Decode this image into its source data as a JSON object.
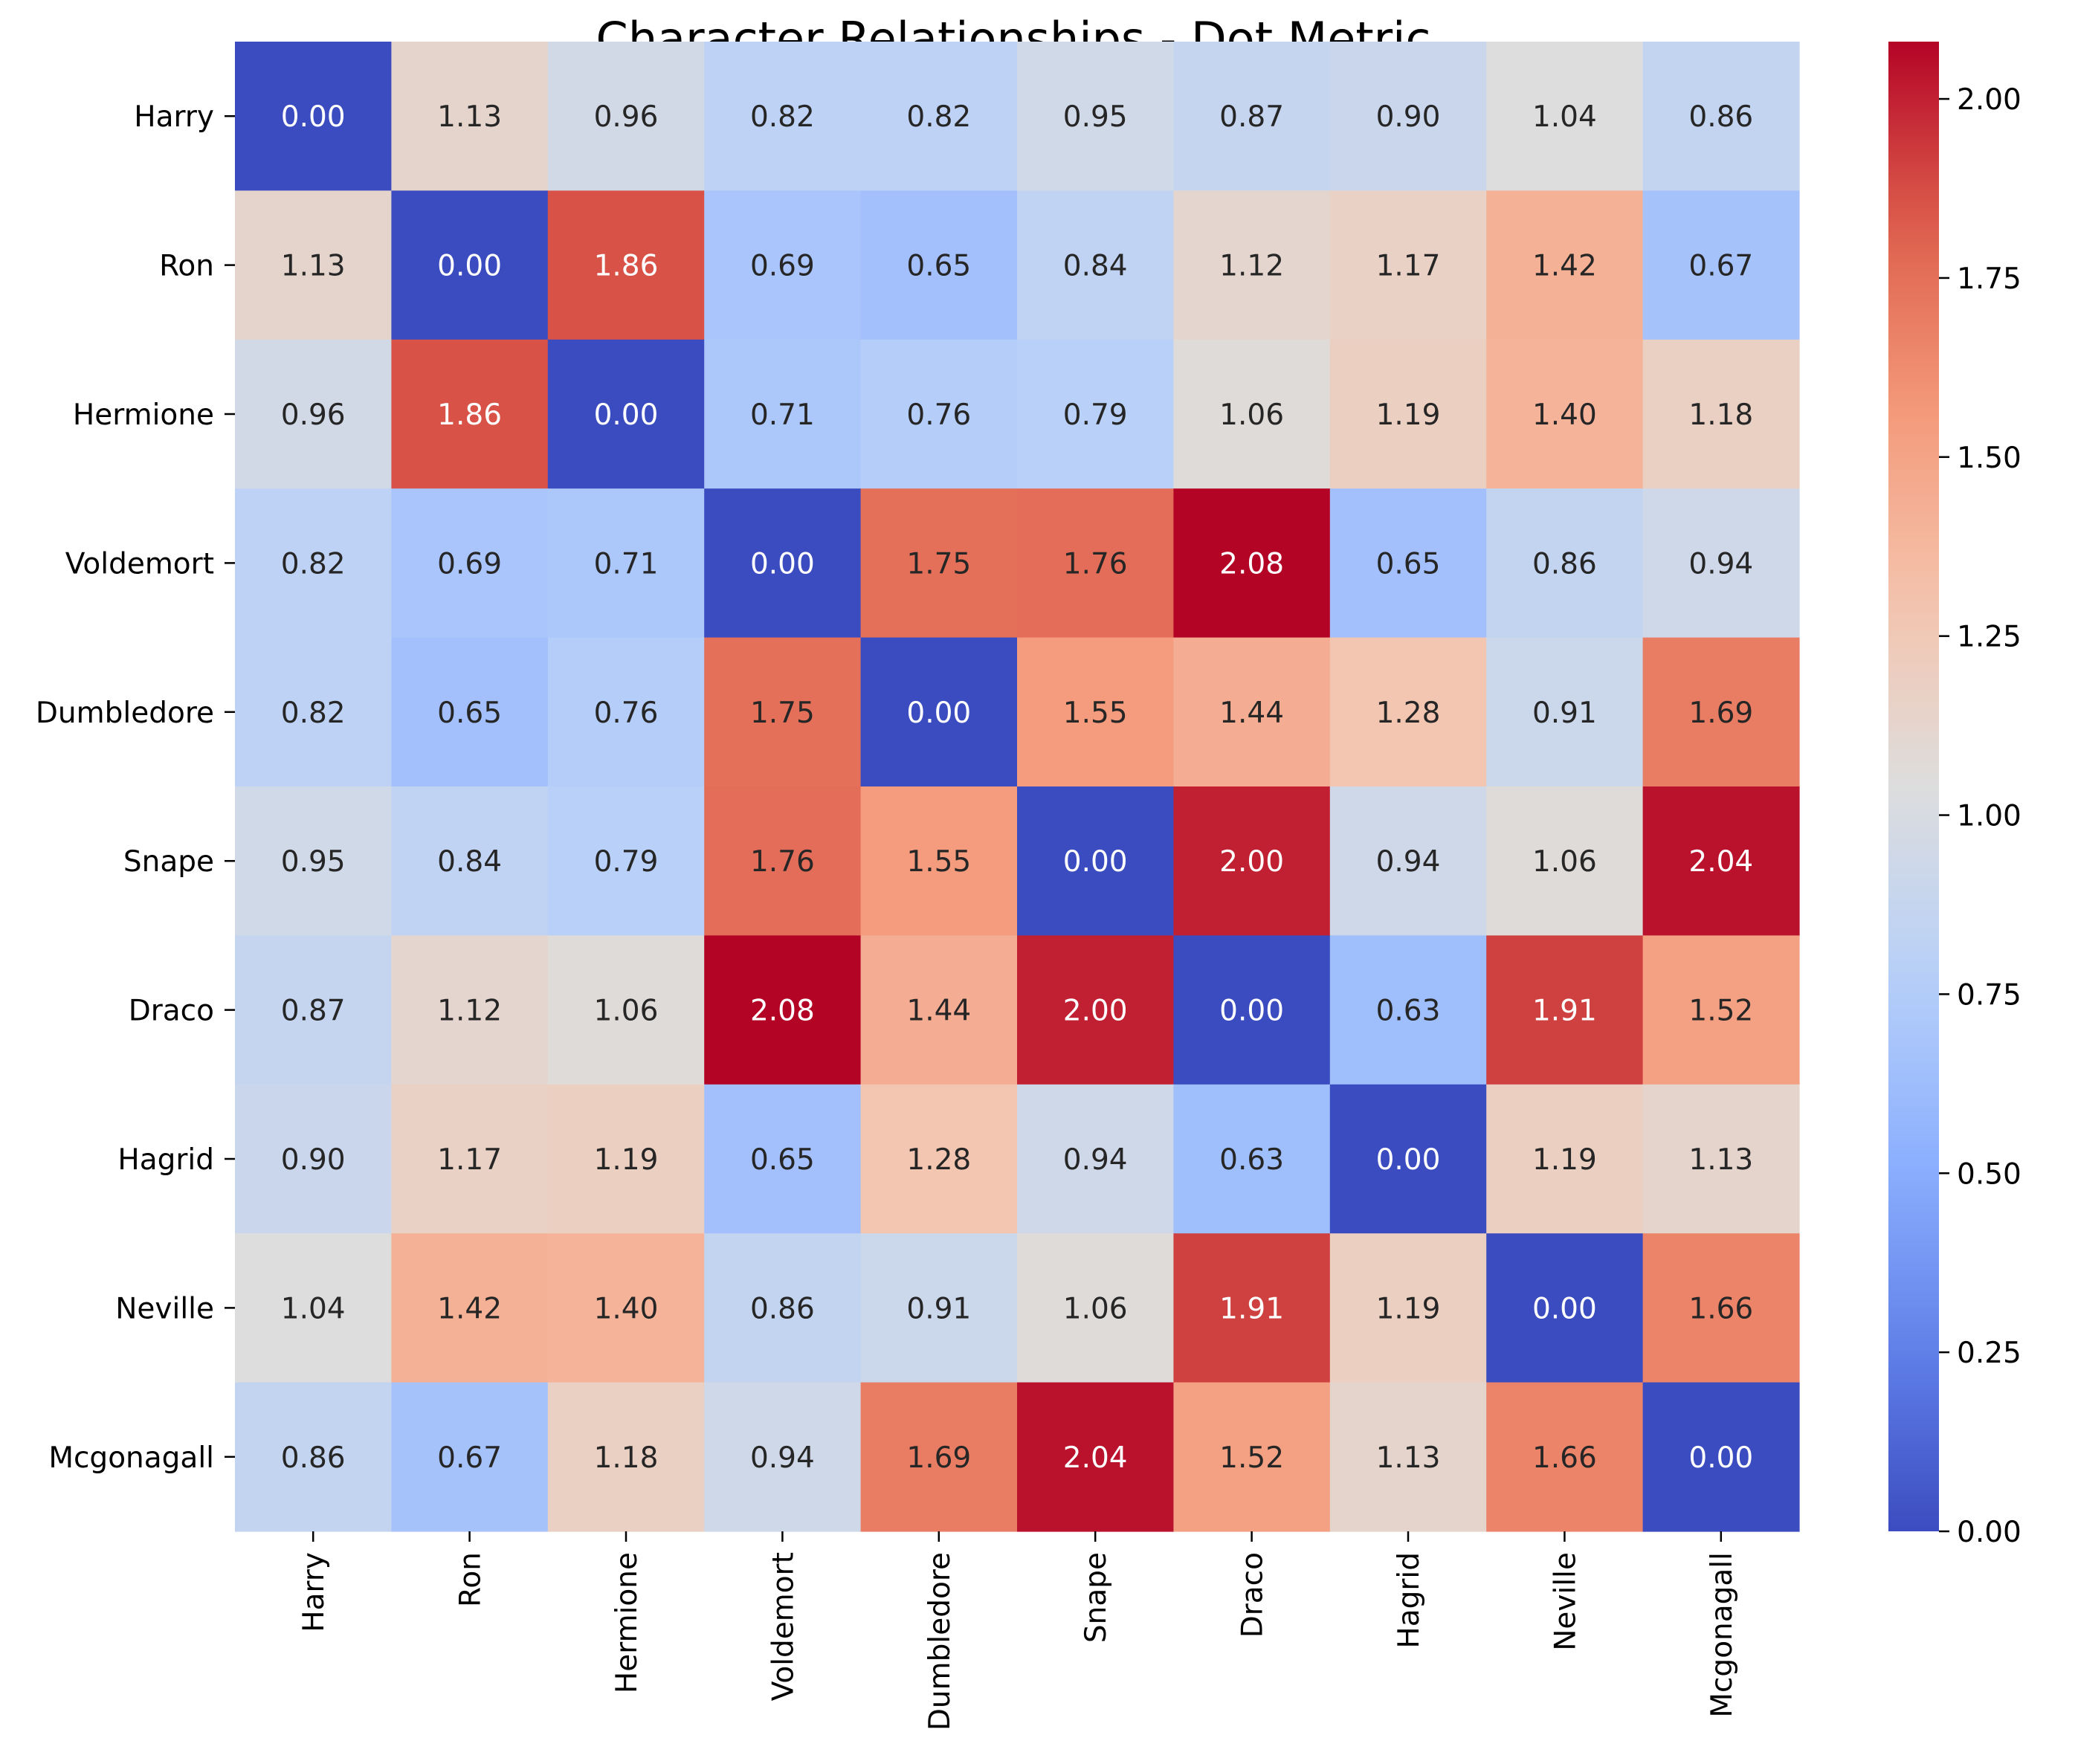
{
  "chart_data": {
    "type": "heatmap",
    "title": "Character Relationships - Dot Metric",
    "xlabel": "",
    "ylabel": "",
    "row_labels": [
      "Harry",
      "Ron",
      "Hermione",
      "Voldemort",
      "Dumbledore",
      "Snape",
      "Draco",
      "Hagrid",
      "Neville",
      "Mcgonagall"
    ],
    "col_labels": [
      "Harry",
      "Ron",
      "Hermione",
      "Voldemort",
      "Dumbledore",
      "Snape",
      "Draco",
      "Hagrid",
      "Neville",
      "Mcgonagall"
    ],
    "values": [
      [
        0.0,
        1.13,
        0.96,
        0.82,
        0.82,
        0.95,
        0.87,
        0.9,
        1.04,
        0.86
      ],
      [
        1.13,
        0.0,
        1.86,
        0.69,
        0.65,
        0.84,
        1.12,
        1.17,
        1.42,
        0.67
      ],
      [
        0.96,
        1.86,
        0.0,
        0.71,
        0.76,
        0.79,
        1.06,
        1.19,
        1.4,
        1.18
      ],
      [
        0.82,
        0.69,
        0.71,
        0.0,
        1.75,
        1.76,
        2.08,
        0.65,
        0.86,
        0.94
      ],
      [
        0.82,
        0.65,
        0.76,
        1.75,
        0.0,
        1.55,
        1.44,
        1.28,
        0.91,
        1.69
      ],
      [
        0.95,
        0.84,
        0.79,
        1.76,
        1.55,
        0.0,
        2.0,
        0.94,
        1.06,
        2.04
      ],
      [
        0.87,
        1.12,
        1.06,
        2.08,
        1.44,
        2.0,
        0.0,
        0.63,
        1.91,
        1.52
      ],
      [
        0.9,
        1.17,
        1.19,
        0.65,
        1.28,
        0.94,
        0.63,
        0.0,
        1.19,
        1.13
      ],
      [
        1.04,
        1.42,
        1.4,
        0.86,
        0.91,
        1.06,
        1.91,
        1.19,
        0.0,
        1.66
      ],
      [
        0.86,
        0.67,
        1.18,
        0.94,
        1.69,
        2.04,
        1.52,
        1.13,
        1.66,
        0.0
      ]
    ],
    "colormap": "coolwarm",
    "vmin": 0.0,
    "vmax": 2.08,
    "colorbar_ticks": [
      "0.00",
      "0.25",
      "0.50",
      "0.75",
      "1.00",
      "1.25",
      "1.50",
      "1.75",
      "2.00"
    ],
    "annotation_format": "2 decimals",
    "grid": false
  }
}
